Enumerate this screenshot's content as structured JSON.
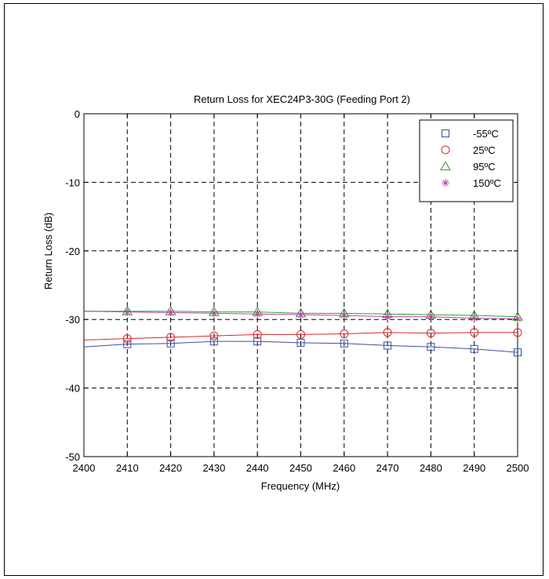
{
  "chart_data": {
    "type": "line",
    "title": "Return Loss for XEC24P3-30G (Feeding Port 2)",
    "xlabel": "Frequency (MHz)",
    "ylabel": "Return Loss (dB)",
    "xlim": [
      2400,
      2500
    ],
    "ylim": [
      -50,
      0
    ],
    "xticks": [
      2400,
      2410,
      2420,
      2430,
      2440,
      2450,
      2460,
      2470,
      2480,
      2490,
      2500
    ],
    "yticks": [
      0,
      -10,
      -20,
      -30,
      -40,
      -50
    ],
    "xtick_labels": [
      "2400",
      "2410",
      "2420",
      "2430",
      "2440",
      "2450",
      "2460",
      "2470",
      "2480",
      "2490",
      "2500"
    ],
    "ytick_labels": [
      "0",
      "-10",
      "-20",
      "-30",
      "-40",
      "-50"
    ],
    "grid": true,
    "legend_position": "top-right",
    "series": [
      {
        "name": "-55ºC",
        "color": "#3a4fa8",
        "marker": "square",
        "x": [
          2400,
          2410,
          2420,
          2430,
          2440,
          2450,
          2460,
          2470,
          2480,
          2490,
          2500
        ],
        "values": [
          -34.0,
          -33.6,
          -33.5,
          -33.2,
          -33.2,
          -33.4,
          -33.5,
          -33.8,
          -34.0,
          -34.3,
          -34.8
        ]
      },
      {
        "name": "25ºC",
        "color": "#e0262a",
        "marker": "circle",
        "x": [
          2400,
          2410,
          2420,
          2430,
          2440,
          2450,
          2460,
          2470,
          2480,
          2490,
          2500
        ],
        "values": [
          -33.0,
          -32.8,
          -32.6,
          -32.4,
          -32.2,
          -32.2,
          -32.1,
          -31.9,
          -32.0,
          -31.9,
          -31.9
        ]
      },
      {
        "name": "95ºC",
        "color": "#2aa02a",
        "marker": "triangle",
        "x": [
          2400,
          2410,
          2420,
          2430,
          2440,
          2450,
          2460,
          2470,
          2480,
          2490,
          2500
        ],
        "values": [
          -28.8,
          -28.8,
          -28.8,
          -28.9,
          -28.9,
          -29.1,
          -29.1,
          -29.2,
          -29.3,
          -29.4,
          -29.6
        ]
      },
      {
        "name": "150ºC",
        "color": "#c040a8",
        "marker": "star",
        "x": [
          2400,
          2410,
          2420,
          2430,
          2440,
          2450,
          2460,
          2470,
          2480,
          2490,
          2500
        ],
        "values": [
          -28.8,
          -28.9,
          -29.0,
          -29.1,
          -29.2,
          -29.3,
          -29.4,
          -29.6,
          -29.6,
          -29.8,
          -29.9
        ]
      }
    ]
  }
}
